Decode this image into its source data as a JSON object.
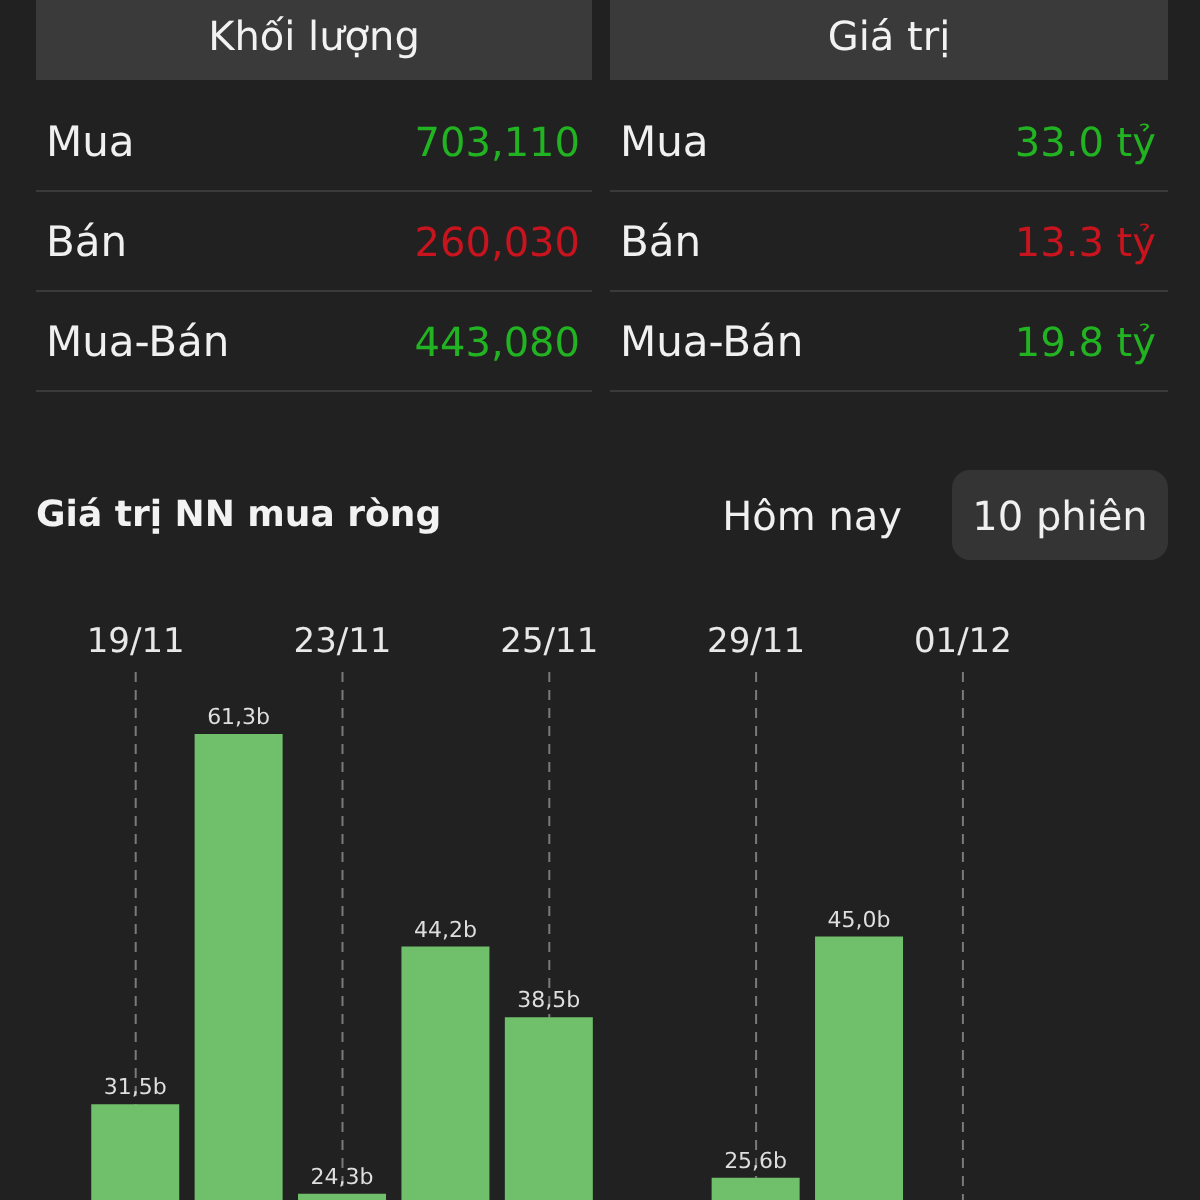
{
  "chart_data": [
    {
      "type": "other",
      "categories": [
        "Khối lượng",
        "Giá trị"
      ],
      "y_categories": [
        "Mua",
        "Bán",
        "Mua-Bán"
      ],
      "cell_labels": [
        [
          "703,110",
          "33.0 tỷ"
        ],
        [
          "260,030",
          "13.3 tỷ"
        ],
        [
          "443,080",
          "19.8 tỷ"
        ]
      ],
      "colors": [
        "#22b322",
        "#c8141e",
        "#22b322"
      ]
    },
    {
      "type": "bar",
      "title": "Giá trị NN mua ròng",
      "annotations": [
        "Hôm nay",
        "10 phiên"
      ],
      "categories": [
        "19/11",
        null,
        "23/11",
        null,
        "25/11",
        null,
        "29/11",
        null,
        "01/12",
        null
      ],
      "values": [
        31.5,
        61.3,
        24.3,
        44.2,
        38.5,
        null,
        25.6,
        45.0,
        null,
        null
      ],
      "value_labels": [
        "31,5b",
        "61,3b",
        "24,3b",
        "44,2b",
        "38,5b",
        null,
        "25,6b",
        "45,0b",
        null,
        null
      ],
      "color": "#70bf6b",
      "ylim": [
        23.8,
        66.3
      ],
      "grid": "x",
      "tick_labels": "x"
    }
  ]
}
